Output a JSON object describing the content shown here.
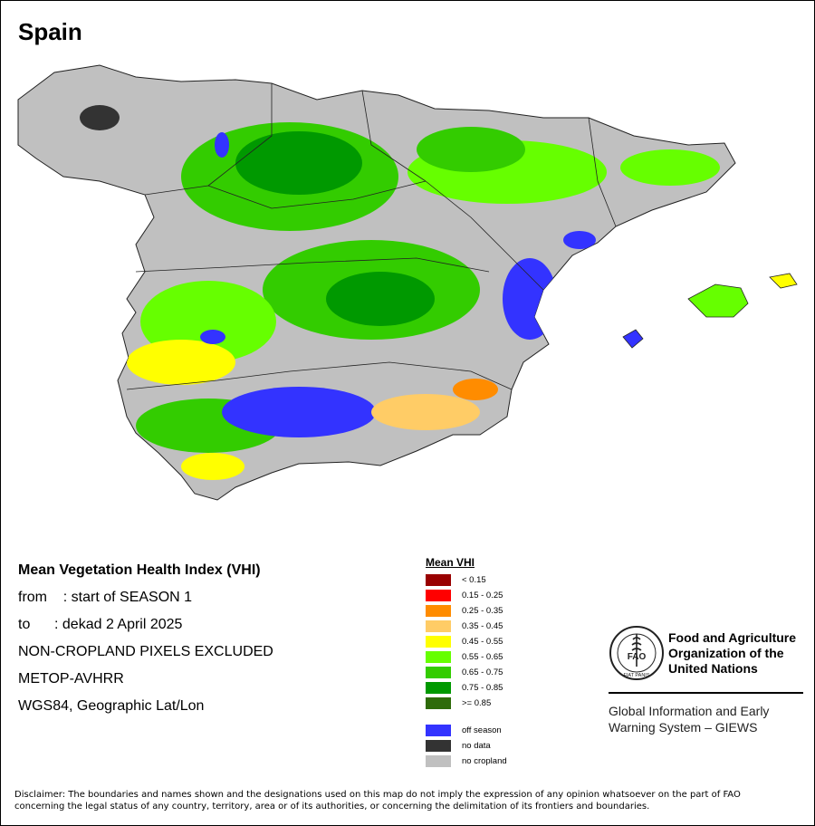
{
  "map_title": "Spain",
  "info": {
    "heading": "Mean Vegetation Health Index (VHI)",
    "from_line": "from    : start of SEASON 1",
    "to_line": "to      : dekad 2 April 2025",
    "mask_line": "NON-CROPLAND PIXELS EXCLUDED",
    "sensor_line": "METOP-AVHRR",
    "crs_line": "WGS84, Geographic Lat/Lon"
  },
  "legend": {
    "title": "Mean VHI",
    "classes": [
      {
        "label": "< 0.15",
        "color": "#990000"
      },
      {
        "label": "0.15 - 0.25",
        "color": "#ff0000"
      },
      {
        "label": "0.25 - 0.35",
        "color": "#ff8c00"
      },
      {
        "label": "0.35 - 0.45",
        "color": "#ffcc66"
      },
      {
        "label": "0.45 - 0.55",
        "color": "#ffff00"
      },
      {
        "label": "0.55 - 0.65",
        "color": "#66ff00"
      },
      {
        "label": "0.65 - 0.75",
        "color": "#33cc00"
      },
      {
        "label": "0.75 - 0.85",
        "color": "#009900"
      },
      {
        "label": ">= 0.85",
        "color": "#2e6b0a"
      }
    ],
    "other": [
      {
        "label": "off season",
        "color": "#3333ff"
      },
      {
        "label": "no data",
        "color": "#333333"
      },
      {
        "label": "no cropland",
        "color": "#c0c0c0"
      }
    ]
  },
  "fao": {
    "org_line1": "Food and Agriculture",
    "org_line2": "Organization of the",
    "org_line3": "United Nations",
    "emblem_text": "FAO",
    "motto": "FIAT PANIS",
    "system_line1": "Global Information and Early",
    "system_line2": "Warning System – GIEWS"
  },
  "disclaimer_line1": "Disclaimer: The boundaries and names shown and the designations used on this map do not imply the expression of any opinion whatsoever on the part of FAO",
  "disclaimer_line2": "concerning the legal status of any country, territory, area or of its authorities, or concerning the delimitation of its frontiers and boundaries."
}
